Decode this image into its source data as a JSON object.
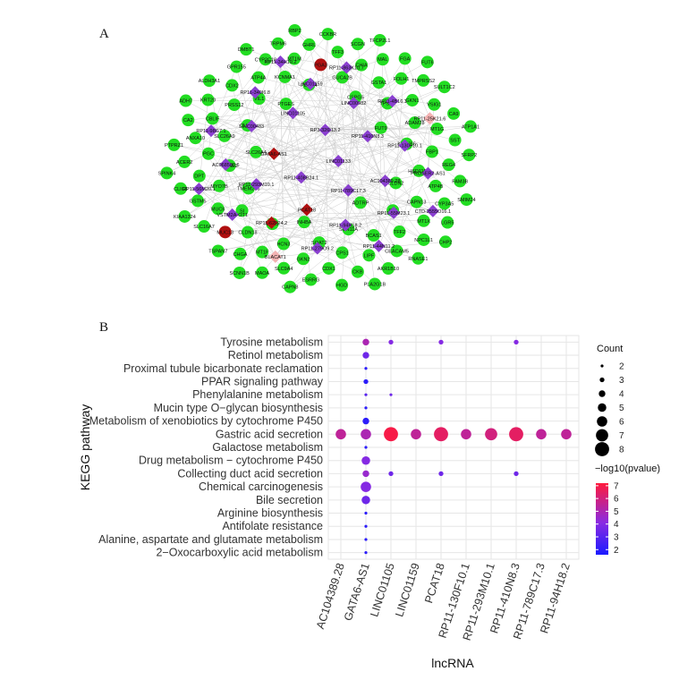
{
  "panels": {
    "a": "A",
    "b": "B"
  },
  "network": {
    "lncrna_nodes": [
      "LINC01133",
      "RP11-408B24.1",
      "RP3-326I13.2",
      "RP11-789C17.3",
      "GATA6-AS1",
      "RP11-410N8.3",
      "PCAT18",
      "LINC01105",
      "AC104389.28",
      "RP11-293M10.1",
      "LINC00982",
      "RP11-94H18.2",
      "LINC00483",
      "RP11-130F10.1",
      "RP11-62F24.2",
      "LINC01159",
      "RP11-55M23.1",
      "AC068580.6",
      "RP11-4B16.1",
      "RP11-279O9.2",
      "RP11-340I6.8",
      "PROSER2-AS1",
      "VSTM2A-OT1",
      "RP11-863K10.7",
      "RP11-44N11.2",
      "RP11-98G7.1",
      "RP11-25K21.6",
      "BLACAT1",
      "RP11-34H19.2",
      "CTD-2555O16.1",
      "RP11-56M20.1"
    ],
    "gene_nodes": [
      "ADTRP",
      "SLC26A4",
      "FUT9",
      "INHBA",
      "PTGES",
      "CLDN2",
      "TMEM236",
      "CSPG5",
      "SCN11A",
      "CLUL1",
      "KCNJ16",
      "UBL5",
      "PDCD4",
      "GIF",
      "KCNE2",
      "TPSB2",
      "SOAT2",
      "VIL1",
      "HSD11B2",
      "SI",
      "GUCA2B",
      "BCAS1",
      "SLC26A9",
      "ADAM28",
      "HCN3",
      "KCNMA1",
      "CAPN13",
      "MYO7B",
      "GSTA1",
      "CPS1",
      "PRSS12",
      "FBP1",
      "CLDN18",
      "PGA3",
      "TFF2",
      "PGC",
      "GKN1",
      "GKN2",
      "ATP4A",
      "ATP4B",
      "MUC6",
      "CHIA",
      "LIPF",
      "CBLIF",
      "MT1G",
      "MT1F",
      "MT1M",
      "MT1X",
      "DPT",
      "FOLH1",
      "CDX1",
      "CDX2",
      "REG4",
      "MUC13",
      "TFF3",
      "CEACAM5",
      "ANXA10",
      "VSIG1",
      "SLC9A4",
      "CYP2C18",
      "CYP3A5",
      "GSTM5",
      "MAL",
      "CKB",
      "KRT20",
      "SST",
      "CHGA",
      "GHRL",
      "NPC1L1",
      "ACER2",
      "TMPRSS2",
      "ESRRG",
      "GPR155",
      "FAM3B",
      "SLC16A7",
      "SCGN",
      "AKR1B10",
      "CA2",
      "CA9",
      "MAOA",
      "TRPM6",
      "LGR5",
      "CLIC6",
      "FGA",
      "HGD",
      "ALDH3A1",
      "SFRP2",
      "TSPAN7",
      "CCKBR",
      "RNASE1",
      "PTPRZ1",
      "SULT1C2",
      "CAPN8",
      "DMBT1",
      "SMIM24",
      "KIAA1324",
      "TFCP2L1",
      "PLA2G1B",
      "ADH7",
      "ATP1A1",
      "SCNN1B",
      "RBP2",
      "CHP2",
      "SPINK4",
      "FUT6"
    ],
    "edge_color": "#d0d0d0",
    "gene_color": "#22dd22",
    "lncrna_color": "#8a3fd0",
    "red_color": "#b01010",
    "pink_color": "#f3b2b2",
    "dark_red_nodes": [
      "PCAT18",
      "GATA6-AS1",
      "PGA3",
      "HOMER2",
      "RP11-62F24.2",
      "MUC13"
    ],
    "pink_nodes": [
      "FUT9",
      "AC010729.1",
      "CH17-140K24.4",
      "RP11-25K21.6",
      "BLACAT1"
    ]
  },
  "chart_data": {
    "type": "scatter",
    "title": "",
    "xlabel": "lncRNA",
    "ylabel": "KEGG pathway",
    "categories_x": [
      "AC104389.28",
      "GATA6-AS1",
      "LINC01105",
      "LINC01159",
      "PCAT18",
      "RP11-130F10.1",
      "RP11-293M10.1",
      "RP11-410N8.3",
      "RP11-789C17.3",
      "RP11-94H18.2"
    ],
    "categories_y": [
      "Tyrosine metabolism",
      "Retinol metabolism",
      "Proximal tubule bicarbonate reclamation",
      "PPAR signaling pathway",
      "Phenylalanine metabolism",
      "Mucin type O−glycan biosynthesis",
      "Metabolism of xenobiotics by cytochrome P450",
      "Gastric acid secretion",
      "Galactose metabolism",
      "Drug metabolism − cytochrome P450",
      "Collecting duct acid secretion",
      "Chemical carcinogenesis",
      "Bile secretion",
      "Arginine biosynthesis",
      "Antifolate resistance",
      "Alanine, aspartate and glutamate metabolism",
      "2−Oxocarboxylic acid metabolism"
    ],
    "points": [
      {
        "x": "GATA6-AS1",
        "y": "Tyrosine metabolism",
        "count": 4,
        "neglog10p": 5.0
      },
      {
        "x": "LINC01105",
        "y": "Tyrosine metabolism",
        "count": 3,
        "neglog10p": 4.0
      },
      {
        "x": "PCAT18",
        "y": "Tyrosine metabolism",
        "count": 3,
        "neglog10p": 4.0
      },
      {
        "x": "RP11-410N8.3",
        "y": "Tyrosine metabolism",
        "count": 3,
        "neglog10p": 4.0
      },
      {
        "x": "GATA6-AS1",
        "y": "Retinol metabolism",
        "count": 4,
        "neglog10p": 3.5
      },
      {
        "x": "GATA6-AS1",
        "y": "Proximal tubule bicarbonate reclamation",
        "count": 2,
        "neglog10p": 2.0
      },
      {
        "x": "GATA6-AS1",
        "y": "PPAR signaling pathway",
        "count": 3,
        "neglog10p": 2.0
      },
      {
        "x": "GATA6-AS1",
        "y": "Phenylalanine metabolism",
        "count": 2,
        "neglog10p": 3.0
      },
      {
        "x": "LINC01105",
        "y": "Phenylalanine metabolism",
        "count": 2,
        "neglog10p": 3.5
      },
      {
        "x": "GATA6-AS1",
        "y": "Mucin type O−glycan biosynthesis",
        "count": 2,
        "neglog10p": 2.0
      },
      {
        "x": "GATA6-AS1",
        "y": "Metabolism of xenobiotics by cytochrome P450",
        "count": 4,
        "neglog10p": 2.0
      },
      {
        "x": "AC104389.28",
        "y": "Gastric acid secretion",
        "count": 6,
        "neglog10p": 5.5
      },
      {
        "x": "GATA6-AS1",
        "y": "Gastric acid secretion",
        "count": 6,
        "neglog10p": 5.0
      },
      {
        "x": "LINC01105",
        "y": "Gastric acid secretion",
        "count": 8,
        "neglog10p": 7.0
      },
      {
        "x": "LINC01159",
        "y": "Gastric acid secretion",
        "count": 6,
        "neglog10p": 5.5
      },
      {
        "x": "PCAT18",
        "y": "Gastric acid secretion",
        "count": 8,
        "neglog10p": 6.5
      },
      {
        "x": "RP11-130F10.1",
        "y": "Gastric acid secretion",
        "count": 6,
        "neglog10p": 5.5
      },
      {
        "x": "RP11-293M10.1",
        "y": "Gastric acid secretion",
        "count": 7,
        "neglog10p": 6.0
      },
      {
        "x": "RP11-410N8.3",
        "y": "Gastric acid secretion",
        "count": 8,
        "neglog10p": 6.5
      },
      {
        "x": "RP11-789C17.3",
        "y": "Gastric acid secretion",
        "count": 6,
        "neglog10p": 5.5
      },
      {
        "x": "RP11-94H18.2",
        "y": "Gastric acid secretion",
        "count": 6,
        "neglog10p": 5.5
      },
      {
        "x": "GATA6-AS1",
        "y": "Galactose metabolism",
        "count": 2,
        "neglog10p": 2.0
      },
      {
        "x": "GATA6-AS1",
        "y": "Drug metabolism − cytochrome P450",
        "count": 5,
        "neglog10p": 4.0
      },
      {
        "x": "GATA6-AS1",
        "y": "Collecting duct acid secretion",
        "count": 4,
        "neglog10p": 4.5
      },
      {
        "x": "LINC01105",
        "y": "Collecting duct acid secretion",
        "count": 3,
        "neglog10p": 3.5
      },
      {
        "x": "PCAT18",
        "y": "Collecting duct acid secretion",
        "count": 3,
        "neglog10p": 3.5
      },
      {
        "x": "RP11-410N8.3",
        "y": "Collecting duct acid secretion",
        "count": 3,
        "neglog10p": 3.5
      },
      {
        "x": "GATA6-AS1",
        "y": "Chemical carcinogenesis",
        "count": 6,
        "neglog10p": 4.0
      },
      {
        "x": "GATA6-AS1",
        "y": "Bile secretion",
        "count": 5,
        "neglog10p": 3.5
      },
      {
        "x": "GATA6-AS1",
        "y": "Arginine biosynthesis",
        "count": 2,
        "neglog10p": 2.0
      },
      {
        "x": "GATA6-AS1",
        "y": "Antifolate resistance",
        "count": 2,
        "neglog10p": 2.0
      },
      {
        "x": "GATA6-AS1",
        "y": "Alanine, aspartate and glutamate metabolism",
        "count": 2,
        "neglog10p": 2.0
      },
      {
        "x": "GATA6-AS1",
        "y": "2−Oxocarboxylic acid metabolism",
        "count": 2,
        "neglog10p": 2.0
      }
    ],
    "legend_count": {
      "title": "Count",
      "values": [
        2,
        3,
        4,
        5,
        6,
        7,
        8
      ]
    },
    "legend_color": {
      "title": "−log10(pvalue)",
      "ticks": [
        2,
        3,
        4,
        5,
        6,
        7
      ],
      "low_color": "#1a1aff",
      "mid_color": "#8a2be2",
      "high_color": "#ff1a3c"
    },
    "grid": true,
    "background": "#ffffff",
    "grid_color": "#e6e6e6"
  }
}
